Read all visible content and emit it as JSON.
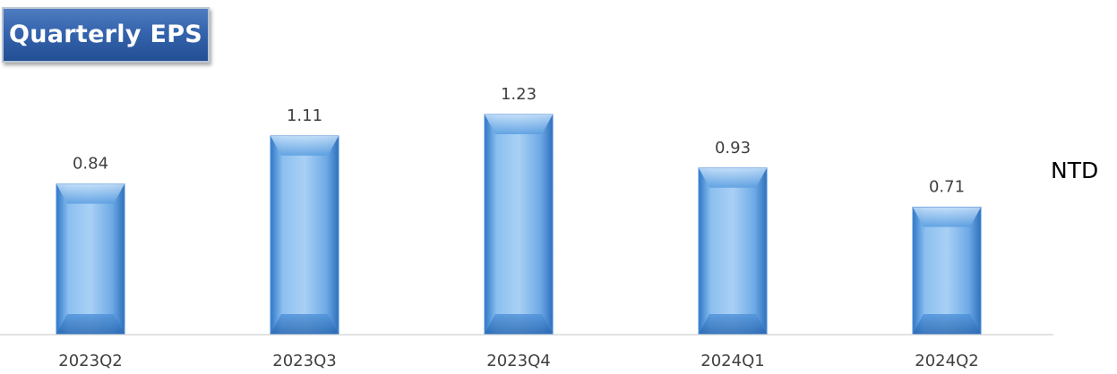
{
  "chart_title": "Quarterly EPS",
  "unit_label": "NTD",
  "colors": {
    "bar_light": "#a9d0f5",
    "bar_mid": "#5fa3e6",
    "bar_dark": "#2f78c8",
    "title_bg": "#3564ad",
    "axis": "#d9d9d9"
  },
  "chart_data": {
    "type": "bar",
    "title": "Quarterly EPS",
    "categories": [
      "2023Q2",
      "2023Q3",
      "2023Q4",
      "2024Q1",
      "2024Q2"
    ],
    "values": [
      0.84,
      1.11,
      1.23,
      0.93,
      0.71
    ],
    "value_labels": [
      "0.84",
      "1.11",
      "1.23",
      "0.93",
      "0.71"
    ],
    "xlabel": "",
    "ylabel": "NTD",
    "ylim": [
      0,
      1.23
    ],
    "grid": false,
    "legend": "none"
  }
}
